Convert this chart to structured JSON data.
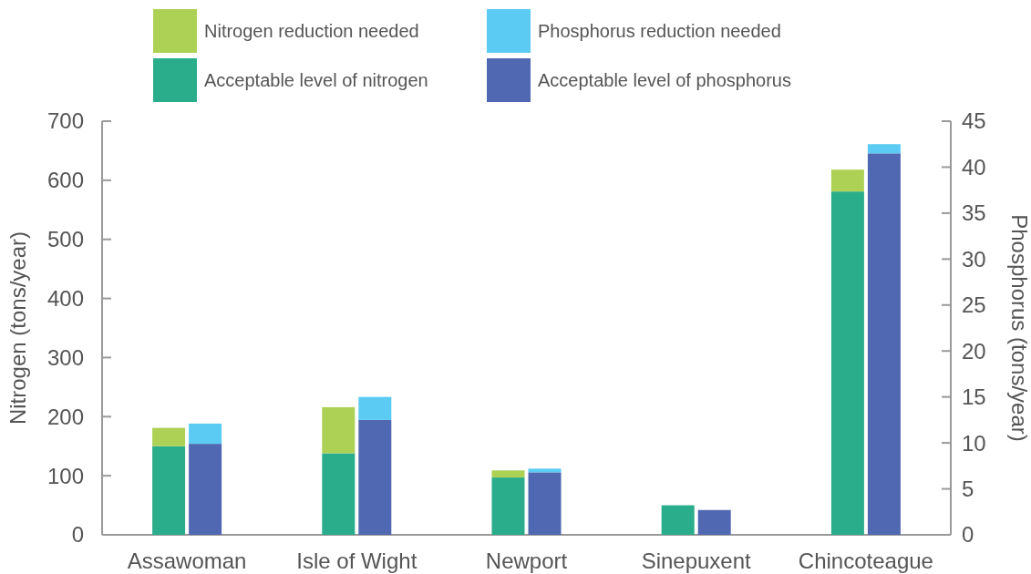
{
  "chart_data": {
    "type": "bar",
    "stacked": true,
    "categories": [
      "Assawoman",
      "Isle of Wight",
      "Newport",
      "Sinepuxent",
      "Chincoteague"
    ],
    "series": [
      {
        "name": "Acceptable level of nitrogen",
        "color": "#2aad8a",
        "axis": "y",
        "values": [
          150,
          138,
          97,
          50,
          581
        ]
      },
      {
        "name": "Nitrogen reduction needed",
        "color": "#acd155",
        "axis": "y",
        "values": [
          31,
          78,
          12,
          0,
          37
        ]
      },
      {
        "name": "Acceptable level of phosphorus",
        "color": "#5068b1",
        "axis": "y2",
        "values": [
          9.9,
          12.5,
          6.8,
          2.7,
          41.5
        ]
      },
      {
        "name": "Phosphorus reduction needed",
        "color": "#5bcbf3",
        "axis": "y2",
        "values": [
          2.2,
          2.5,
          0.4,
          0,
          1.0
        ]
      }
    ],
    "ylabel": "Nitrogen (tons/year)",
    "y2label": "Phosphorus (tons/year)",
    "ylim": [
      0,
      700
    ],
    "yticks": [
      0,
      100,
      200,
      300,
      400,
      500,
      600,
      700
    ],
    "y2lim": [
      0,
      45
    ],
    "y2ticks": [
      0,
      5,
      10,
      15,
      20,
      25,
      30,
      35,
      40,
      45
    ],
    "legend": "top",
    "grid": false
  }
}
